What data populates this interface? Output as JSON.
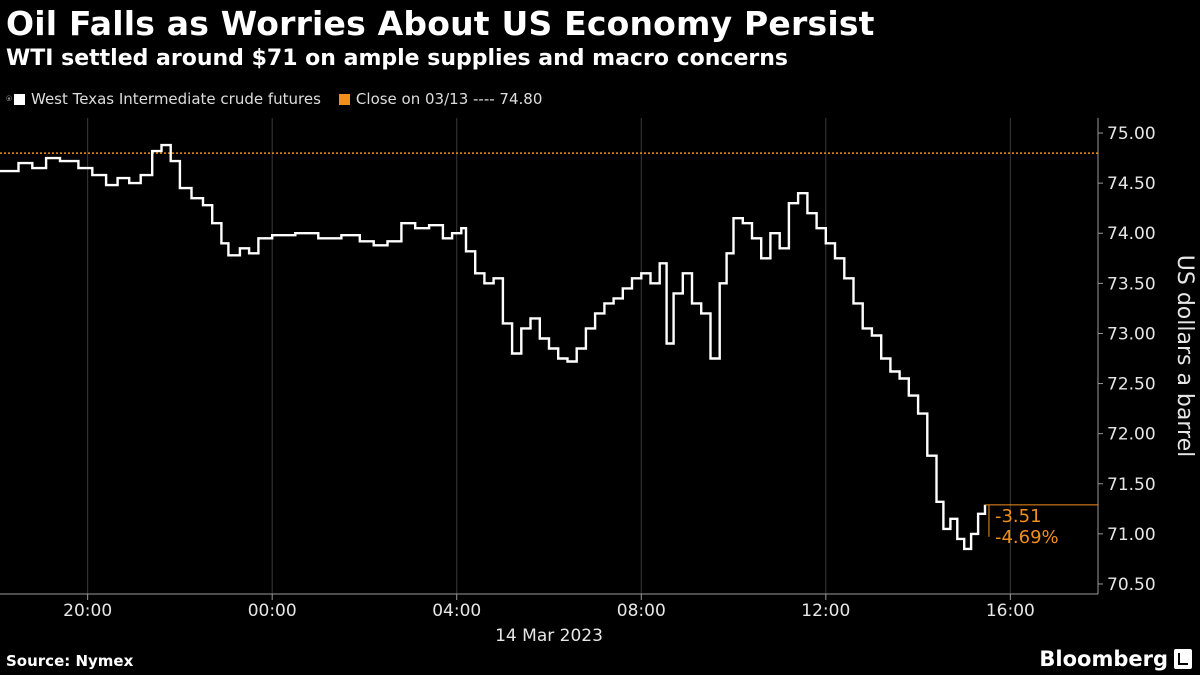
{
  "header": {
    "title": "Oil Falls as Worries About US Economy Persist",
    "subtitle": "WTI settled around $71 on ample supplies and macro concerns"
  },
  "legend": {
    "items": [
      {
        "label": "West Texas Intermediate crude futures",
        "color": "#ffffff"
      },
      {
        "label": "Close on 03/13 ---- 74.80",
        "color": "#f28e1c"
      }
    ]
  },
  "footer": {
    "source": "Source: Nymex",
    "brand": "Bloomberg"
  },
  "chart_data": {
    "type": "line",
    "x_unit": "hours from 00:00, 14 Mar 2023",
    "xlim": [
      -5.9,
      17.9
    ],
    "ylim": [
      70.4,
      75.15
    ],
    "ylabel": "US dollars a barrel",
    "xticks": [
      {
        "value": -4,
        "label": "20:00"
      },
      {
        "value": 0,
        "label": "00:00"
      },
      {
        "value": 4,
        "label": "04:00"
      },
      {
        "value": 8,
        "label": "08:00"
      },
      {
        "value": 12,
        "label": "12:00"
      },
      {
        "value": 16,
        "label": "16:00"
      }
    ],
    "date_label": {
      "value": 6,
      "label": "14 Mar 2023"
    },
    "yticks": [
      70.5,
      71.0,
      71.5,
      72.0,
      72.5,
      73.0,
      73.5,
      74.0,
      74.5,
      75.0
    ],
    "ytick_labels": [
      "70.50",
      "71.00",
      "71.50",
      "72.00",
      "72.50",
      "73.00",
      "73.50",
      "74.00",
      "74.50",
      "75.00"
    ],
    "reference_line": {
      "value": 74.8,
      "color": "#f28e1c"
    },
    "series": [
      {
        "color": "#ffffff",
        "points": [
          [
            -5.9,
            74.62
          ],
          [
            -5.5,
            74.7
          ],
          [
            -5.2,
            74.65
          ],
          [
            -4.9,
            74.75
          ],
          [
            -4.6,
            74.72
          ],
          [
            -4.2,
            74.65
          ],
          [
            -3.9,
            74.58
          ],
          [
            -3.6,
            74.48
          ],
          [
            -3.35,
            74.55
          ],
          [
            -3.1,
            74.5
          ],
          [
            -2.85,
            74.58
          ],
          [
            -2.6,
            74.82
          ],
          [
            -2.4,
            74.88
          ],
          [
            -2.2,
            74.72
          ],
          [
            -2.0,
            74.45
          ],
          [
            -1.75,
            74.35
          ],
          [
            -1.5,
            74.28
          ],
          [
            -1.3,
            74.1
          ],
          [
            -1.1,
            73.9
          ],
          [
            -0.95,
            73.78
          ],
          [
            -0.7,
            73.85
          ],
          [
            -0.5,
            73.8
          ],
          [
            -0.3,
            73.95
          ],
          [
            0.0,
            73.98
          ],
          [
            0.5,
            74.0
          ],
          [
            1.0,
            73.95
          ],
          [
            1.5,
            73.98
          ],
          [
            1.9,
            73.92
          ],
          [
            2.2,
            73.88
          ],
          [
            2.5,
            73.92
          ],
          [
            2.8,
            74.1
          ],
          [
            3.1,
            74.05
          ],
          [
            3.4,
            74.08
          ],
          [
            3.7,
            73.95
          ],
          [
            3.9,
            74.0
          ],
          [
            4.1,
            74.05
          ],
          [
            4.2,
            73.82
          ],
          [
            4.4,
            73.6
          ],
          [
            4.6,
            73.5
          ],
          [
            4.8,
            73.55
          ],
          [
            5.0,
            73.1
          ],
          [
            5.2,
            72.8
          ],
          [
            5.4,
            73.05
          ],
          [
            5.6,
            73.15
          ],
          [
            5.8,
            72.95
          ],
          [
            6.0,
            72.85
          ],
          [
            6.2,
            72.75
          ],
          [
            6.4,
            72.72
          ],
          [
            6.6,
            72.85
          ],
          [
            6.8,
            73.05
          ],
          [
            7.0,
            73.2
          ],
          [
            7.2,
            73.3
          ],
          [
            7.4,
            73.35
          ],
          [
            7.6,
            73.45
          ],
          [
            7.8,
            73.55
          ],
          [
            8.0,
            73.6
          ],
          [
            8.2,
            73.5
          ],
          [
            8.4,
            73.7
          ],
          [
            8.55,
            72.9
          ],
          [
            8.7,
            73.4
          ],
          [
            8.9,
            73.6
          ],
          [
            9.1,
            73.3
          ],
          [
            9.3,
            73.2
          ],
          [
            9.5,
            72.75
          ],
          [
            9.7,
            73.5
          ],
          [
            9.85,
            73.8
          ],
          [
            10.0,
            74.15
          ],
          [
            10.2,
            74.1
          ],
          [
            10.4,
            73.95
          ],
          [
            10.6,
            73.75
          ],
          [
            10.8,
            74.0
          ],
          [
            11.0,
            73.85
          ],
          [
            11.2,
            74.3
          ],
          [
            11.4,
            74.4
          ],
          [
            11.6,
            74.2
          ],
          [
            11.8,
            74.05
          ],
          [
            12.0,
            73.9
          ],
          [
            12.2,
            73.75
          ],
          [
            12.4,
            73.55
          ],
          [
            12.6,
            73.3
          ],
          [
            12.8,
            73.05
          ],
          [
            13.0,
            72.98
          ],
          [
            13.2,
            72.75
          ],
          [
            13.4,
            72.62
          ],
          [
            13.6,
            72.55
          ],
          [
            13.8,
            72.38
          ],
          [
            14.0,
            72.2
          ],
          [
            14.2,
            71.78
          ],
          [
            14.4,
            71.32
          ],
          [
            14.55,
            71.05
          ],
          [
            14.7,
            71.15
          ],
          [
            14.85,
            70.95
          ],
          [
            15.0,
            70.85
          ],
          [
            15.15,
            71.0
          ],
          [
            15.3,
            71.2
          ],
          [
            15.45,
            71.29
          ]
        ]
      }
    ],
    "annotations": [
      {
        "label": "-3.51",
        "color": "#f28e1c",
        "value": 71.29
      },
      {
        "label": "-4.69%",
        "color": "#f28e1c",
        "value": 71.29
      }
    ]
  }
}
